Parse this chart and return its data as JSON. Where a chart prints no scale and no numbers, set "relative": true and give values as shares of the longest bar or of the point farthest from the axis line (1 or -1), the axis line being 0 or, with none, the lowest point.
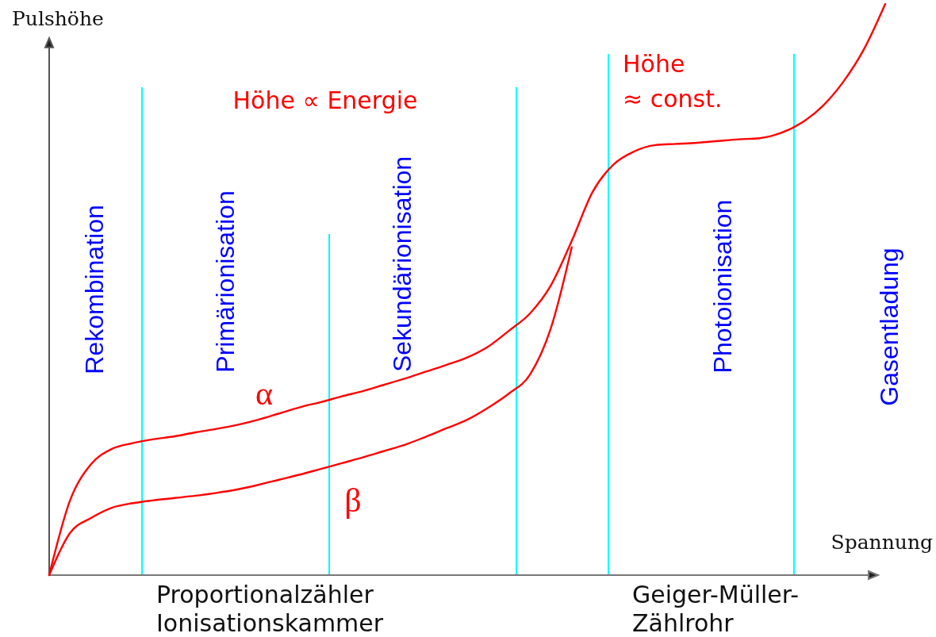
{
  "chart_data": {
    "type": "line",
    "relative": true,
    "xlabel": "Spannung",
    "ylabel": "Pulshöhe",
    "categories": [
      null,
      null,
      null,
      null,
      null,
      null,
      null,
      null,
      null,
      null,
      null,
      null,
      null,
      null,
      null,
      null,
      null,
      null,
      null,
      null,
      null,
      null,
      null,
      null,
      null,
      null,
      null,
      null,
      null,
      null,
      null,
      null,
      null,
      null,
      null,
      null,
      null,
      null,
      null,
      null,
      null
    ],
    "series": [
      {
        "name": "α",
        "color": "#ff0000",
        "values": [
          0,
          0.131,
          0.194,
          0.221,
          0.231,
          0.238,
          0.243,
          0.25,
          0.256,
          0.263,
          0.272,
          0.283,
          0.294,
          0.303,
          0.313,
          0.322,
          0.333,
          0.344,
          0.356,
          0.368,
          0.381,
          0.4,
          0.428,
          0.458,
          0.507,
          0.585,
          0.671,
          0.719,
          0.742,
          0.753,
          0.755,
          0.757,
          0.76,
          0.763,
          0.765,
          0.774,
          0.792,
          0.821,
          0.864,
          0.922,
          1.0
        ]
      },
      {
        "name": "β",
        "color": "#ff0000",
        "values": [
          0,
          0.074,
          0.1,
          0.118,
          0.126,
          0.131,
          0.135,
          0.139,
          0.144,
          0.15,
          0.158,
          0.167,
          0.176,
          0.186,
          0.196,
          0.206,
          0.217,
          0.228,
          0.242,
          0.257,
          0.272,
          0.293,
          0.318,
          0.351,
          0.432,
          0.574,
          null,
          null,
          null,
          null,
          null,
          null,
          null,
          null,
          null,
          null,
          null,
          null,
          null,
          null,
          null
        ]
      }
    ],
    "annotations": [
      "Höhe ∝ Energie",
      "Höhe\n≈ const.",
      "Rekombination",
      "Primärionisation",
      "Sekundärionisation",
      "Photoionisation",
      "Gasentladung",
      "Proportionalzähler\nIonisationskammer",
      "Geiger-Müller-\nZählrohr"
    ]
  }
}
